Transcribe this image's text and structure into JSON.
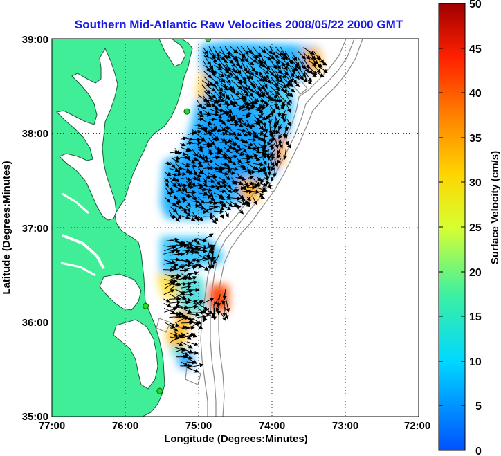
{
  "title": "Southern Mid-Atlantic Raw Velocities 2008/05/22 2000 GMT",
  "xlabel": "Longitude (Degrees:Minutes)",
  "ylabel": "Latitude (Degrees:Minutes)",
  "x_ticks": [
    "77:00",
    "76:00",
    "75:00",
    "74:00",
    "73:00",
    "72:00"
  ],
  "y_ticks": [
    "39:00",
    "38:00",
    "37:00",
    "36:00",
    "35:00"
  ],
  "colorbar": {
    "label": "Surface Velocity (cm/s)",
    "ticks": [
      "50",
      "45",
      "40",
      "35",
      "30",
      "25",
      "20",
      "15",
      "10",
      "5",
      "0"
    ],
    "range": [
      0,
      50
    ]
  },
  "colors": {
    "land": "#40ee98",
    "title": "#1a1ae6",
    "bathymetry": "#8a8a8a"
  },
  "chart_data": {
    "type": "heatmap",
    "xlim_deg_west": [
      77,
      72
    ],
    "ylim_deg_north": [
      35,
      39
    ],
    "grid": true,
    "legend": "right colorbar",
    "stations": [
      {
        "lon": -74.87,
        "lat": 39.0
      },
      {
        "lon": -75.16,
        "lat": 38.23
      },
      {
        "lon": -75.72,
        "lat": 36.17
      },
      {
        "lon": -75.53,
        "lat": 35.27
      }
    ]
  }
}
